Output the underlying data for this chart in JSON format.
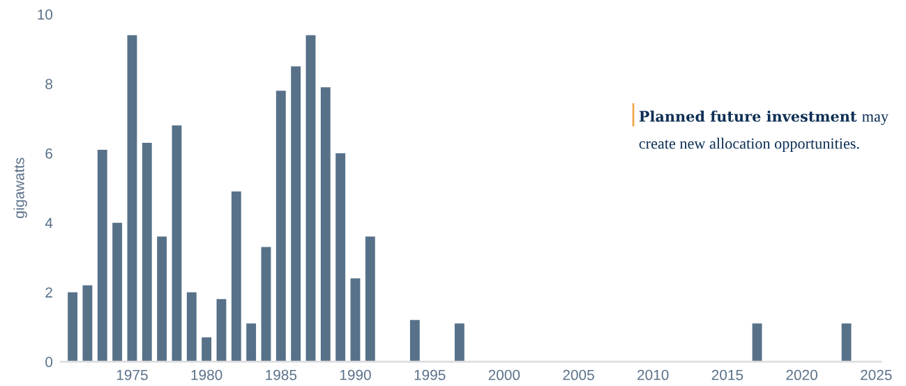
{
  "chart_data": {
    "type": "bar",
    "ylabel": "gigawatts",
    "color": "#577189",
    "x": [
      1971,
      1972,
      1973,
      1974,
      1975,
      1976,
      1977,
      1978,
      1979,
      1980,
      1981,
      1982,
      1983,
      1984,
      1985,
      1986,
      1987,
      1988,
      1989,
      1990,
      1991,
      1994,
      1997,
      2017,
      2023
    ],
    "values": [
      2.0,
      2.2,
      6.1,
      4.0,
      9.4,
      6.3,
      3.6,
      6.8,
      2.0,
      0.7,
      1.8,
      4.9,
      1.1,
      3.3,
      7.8,
      8.5,
      9.4,
      7.9,
      6.0,
      2.4,
      3.6,
      1.2,
      1.1,
      1.1,
      1.1
    ],
    "xlim": [
      1970.2,
      2025.3
    ],
    "xticks": [
      1975,
      1980,
      1985,
      1990,
      1995,
      2000,
      2005,
      2010,
      2015,
      2020,
      2025
    ],
    "ylim": [
      0,
      10
    ],
    "yticks": [
      0,
      2,
      4,
      6,
      8,
      10
    ],
    "grid": false,
    "legend": false,
    "annotations": [
      "Planned future investment",
      "may create new allocation opportunities."
    ]
  }
}
